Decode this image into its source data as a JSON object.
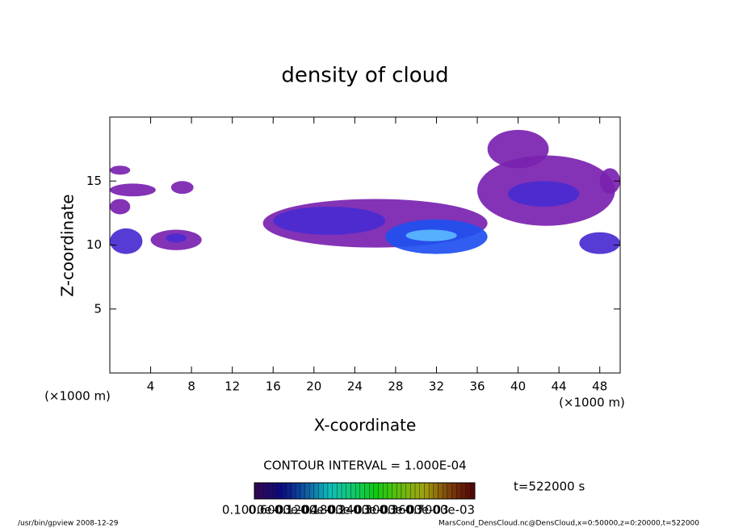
{
  "chart_data": {
    "type": "contour",
    "title": "density of cloud",
    "x_label": "X-coordinate",
    "y_label": "Z-coordinate",
    "x_unit_label": "(×1000 m)",
    "y_unit_label": "(×1000 m)",
    "xlim": [
      0,
      50
    ],
    "ylim": [
      0,
      20
    ],
    "xticks": [
      4,
      8,
      12,
      16,
      20,
      24,
      28,
      32,
      36,
      40,
      44,
      48
    ],
    "yticks": [
      5,
      10,
      15
    ],
    "contour_interval": "CONTOUR INTERVAL = 1.000E-04",
    "time_label": "t=522000 s",
    "levels": [
      0.0001,
      0.0002,
      0.0003,
      0.0004
    ],
    "level_colors": [
      "#7a22b0",
      "#4a2ad0",
      "#2050f0",
      "#5ab8ff"
    ],
    "colorbar_labels": [
      "0.1000e-03",
      "0.6000e-04",
      "0.1200e-03",
      "0.1800e-03",
      "0.2400e-03",
      "0.3000e-03",
      "0.3600e-03",
      "0.7000e-03"
    ],
    "regions": [
      {
        "x": [
          0,
          3.2
        ],
        "z": [
          9.3,
          11.3
        ],
        "value": 0.0002
      },
      {
        "x": [
          0,
          2
        ],
        "z": [
          15.5,
          16.2
        ],
        "value": 0.0001
      },
      {
        "x": [
          0,
          4.5
        ],
        "z": [
          13.8,
          14.8
        ],
        "value": 0.0001
      },
      {
        "x": [
          0,
          2
        ],
        "z": [
          12.4,
          13.6
        ],
        "value": 0.0001
      },
      {
        "x": [
          4,
          9
        ],
        "z": [
          9.6,
          11.2
        ],
        "value": 0.0001
      },
      {
        "x": [
          5.5,
          7.5
        ],
        "z": [
          10.2,
          10.9
        ],
        "value": 0.0002
      },
      {
        "x": [
          6,
          8.2
        ],
        "z": [
          14,
          15
        ],
        "value": 0.0001
      },
      {
        "x": [
          15,
          37
        ],
        "z": [
          9.8,
          13.6
        ],
        "value": 0.0001
      },
      {
        "x": [
          16,
          27
        ],
        "z": [
          10.8,
          13
        ],
        "value": 0.0002
      },
      {
        "x": [
          27,
          37
        ],
        "z": [
          9.3,
          12
        ],
        "value": 0.0003
      },
      {
        "x": [
          29,
          34
        ],
        "z": [
          10.3,
          11.2
        ],
        "value": 0.0004
      },
      {
        "x": [
          36,
          49.5
        ],
        "z": [
          11.5,
          17
        ],
        "value": 0.0001
      },
      {
        "x": [
          39,
          46
        ],
        "z": [
          13,
          15
        ],
        "value": 0.0002
      },
      {
        "x": [
          37,
          43
        ],
        "z": [
          16,
          19
        ],
        "value": 0.0001
      },
      {
        "x": [
          46,
          50
        ],
        "z": [
          9.3,
          11
        ],
        "value": 0.0002
      },
      {
        "x": [
          48,
          50
        ],
        "z": [
          14,
          16
        ],
        "value": 0.0001
      }
    ],
    "footer_left": "/usr/bin/gpview   2008-12-29",
    "footer_right": "MarsCond_DensCloud.nc@DensCloud,x=0:50000,z=0:20000,t=522000"
  }
}
